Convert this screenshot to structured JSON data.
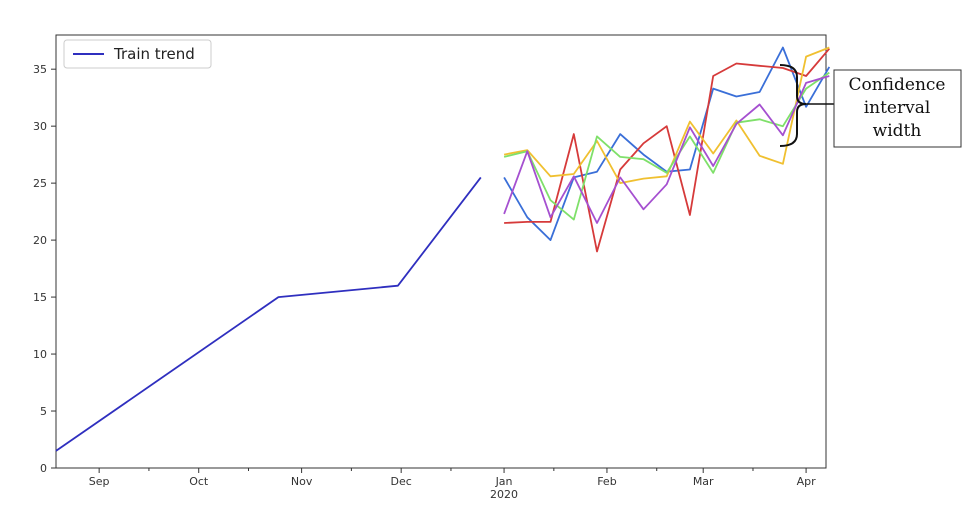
{
  "chart_data": {
    "type": "line",
    "title": "",
    "xlabel": "",
    "ylabel": "",
    "x_axis": {
      "kind": "date",
      "range": [
        "2019-08-19",
        "2020-04-07"
      ],
      "ticks": [
        {
          "date": "2019-09-01",
          "label": "Sep"
        },
        {
          "date": "2019-10-01",
          "label": "Oct"
        },
        {
          "date": "2019-11-01",
          "label": "Nov"
        },
        {
          "date": "2019-12-01",
          "label": "Dec"
        },
        {
          "date": "2020-01-01",
          "label": "Jan",
          "sublabel": "2020"
        },
        {
          "date": "2020-02-01",
          "label": "Feb"
        },
        {
          "date": "2020-03-01",
          "label": "Mar"
        },
        {
          "date": "2020-04-01",
          "label": "Apr"
        }
      ]
    },
    "ylim": [
      0,
      38
    ],
    "yticks": [
      0,
      5,
      10,
      15,
      20,
      25,
      30,
      35
    ],
    "grid": false,
    "legend": {
      "placement": "top-left",
      "entries": [
        "Train trend"
      ]
    },
    "series": [
      {
        "name": "Train trend",
        "color": "#2f2fbf",
        "x": [
          "2019-08-19",
          "2019-10-25",
          "2019-11-30",
          "2019-12-25"
        ],
        "y": [
          1.5,
          15.0,
          16.0,
          25.5
        ]
      },
      {
        "color": "#3a6fd8",
        "x": [
          "2020-01-01",
          "2020-01-08",
          "2020-01-15",
          "2020-01-22",
          "2020-01-29",
          "2020-02-05",
          "2020-02-12",
          "2020-02-19",
          "2020-02-26",
          "2020-03-04",
          "2020-03-11",
          "2020-03-18",
          "2020-03-25",
          "2020-04-01",
          "2020-04-08"
        ],
        "y": [
          25.5,
          22.0,
          20.0,
          25.5,
          26.0,
          29.3,
          27.5,
          26.0,
          26.2,
          33.3,
          32.6,
          33.0,
          36.9,
          31.7,
          35.2
        ]
      },
      {
        "color": "#d63a3a",
        "x": [
          "2020-01-01",
          "2020-01-08",
          "2020-01-15",
          "2020-01-22",
          "2020-01-29",
          "2020-02-05",
          "2020-02-12",
          "2020-02-19",
          "2020-02-26",
          "2020-03-04",
          "2020-03-11",
          "2020-03-18",
          "2020-03-25",
          "2020-04-01",
          "2020-04-08"
        ],
        "y": [
          21.5,
          21.6,
          21.6,
          29.3,
          19.0,
          26.2,
          28.5,
          30.0,
          22.2,
          34.4,
          35.5,
          35.3,
          35.1,
          34.4,
          36.8
        ]
      },
      {
        "color": "#f0c030",
        "x": [
          "2020-01-01",
          "2020-01-08",
          "2020-01-15",
          "2020-01-22",
          "2020-01-29",
          "2020-02-05",
          "2020-02-12",
          "2020-02-19",
          "2020-02-26",
          "2020-03-04",
          "2020-03-11",
          "2020-03-18",
          "2020-03-25",
          "2020-04-01",
          "2020-04-08"
        ],
        "y": [
          27.5,
          27.9,
          25.6,
          25.8,
          28.7,
          25.0,
          25.4,
          25.6,
          30.4,
          27.6,
          30.5,
          27.4,
          26.7,
          36.1,
          36.9
        ]
      },
      {
        "color": "#7fe06a",
        "x": [
          "2020-01-01",
          "2020-01-08",
          "2020-01-15",
          "2020-01-22",
          "2020-01-29",
          "2020-02-05",
          "2020-02-12",
          "2020-02-19",
          "2020-02-26",
          "2020-03-04",
          "2020-03-11",
          "2020-03-18",
          "2020-03-25",
          "2020-04-01",
          "2020-04-08"
        ],
        "y": [
          27.3,
          27.8,
          23.5,
          21.8,
          29.1,
          27.3,
          27.1,
          25.9,
          29.1,
          25.9,
          30.3,
          30.6,
          30.0,
          33.3,
          34.7
        ]
      },
      {
        "color": "#a550d0",
        "x": [
          "2020-01-01",
          "2020-01-08",
          "2020-01-15",
          "2020-01-22",
          "2020-01-29",
          "2020-02-05",
          "2020-02-12",
          "2020-02-19",
          "2020-02-26",
          "2020-03-04",
          "2020-03-11",
          "2020-03-18",
          "2020-03-25",
          "2020-04-01",
          "2020-04-08"
        ],
        "y": [
          22.3,
          27.8,
          22.0,
          25.6,
          21.5,
          25.5,
          22.7,
          24.9,
          29.9,
          26.5,
          30.2,
          31.9,
          29.2,
          33.8,
          34.4
        ]
      }
    ],
    "annotations": [
      {
        "text": [
          "Confidence",
          "interval",
          "width"
        ],
        "target": "spread of forecasts around 2020-04-01"
      }
    ]
  }
}
